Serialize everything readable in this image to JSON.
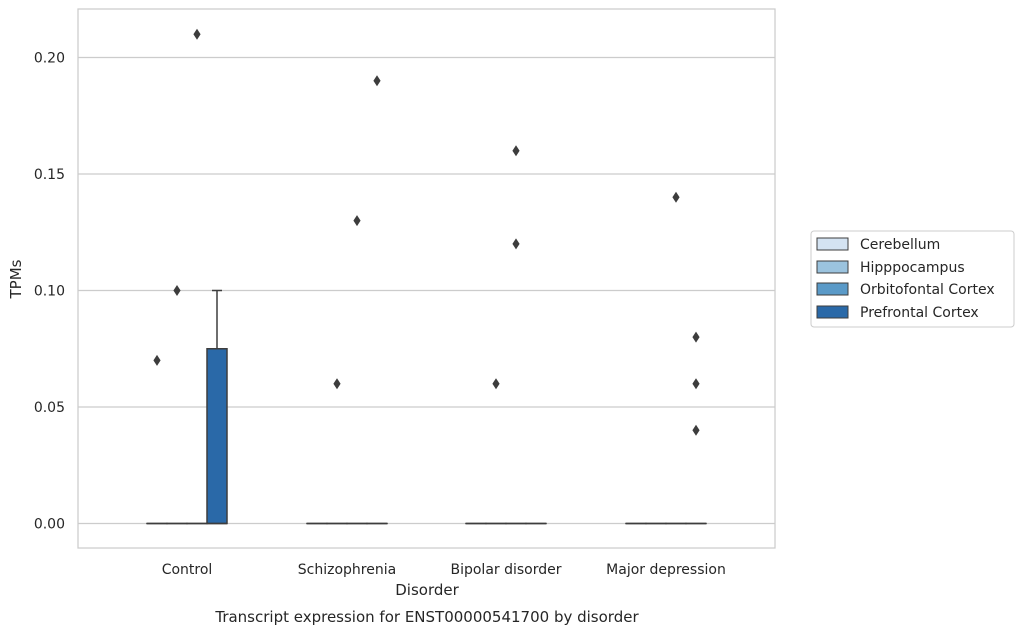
{
  "chart_data": {
    "type": "box",
    "xlabel": "Disorder",
    "ylabel": "TPMs",
    "caption": "Transcript expression for ENST00000541700 by disorder",
    "ylim": [
      -0.01,
      0.22
    ],
    "yticks": [
      "0.00",
      "0.05",
      "0.10",
      "0.15",
      "0.20"
    ],
    "categories": [
      "Control",
      "Schizophrenia",
      "Bipolar disorder",
      "Major depression"
    ],
    "grid": "horizontal",
    "legend_position": "right",
    "series": [
      {
        "name": "Cerebellum",
        "color": "#d4e3f2",
        "boxes": [
          {
            "q1": 0,
            "median": 0,
            "q3": 0,
            "whisker_low": 0,
            "whisker_high": 0
          },
          {
            "q1": 0,
            "median": 0,
            "q3": 0,
            "whisker_low": 0,
            "whisker_high": 0
          },
          {
            "q1": 0,
            "median": 0,
            "q3": 0,
            "whisker_low": 0,
            "whisker_high": 0
          },
          {
            "q1": 0,
            "median": 0,
            "q3": 0,
            "whisker_low": 0,
            "whisker_high": 0
          }
        ],
        "outliers": [
          [
            0.07
          ],
          [],
          [],
          []
        ]
      },
      {
        "name": "Hipppocampus",
        "color": "#9bc3de",
        "boxes": [
          {
            "q1": 0,
            "median": 0,
            "q3": 0,
            "whisker_low": 0,
            "whisker_high": 0
          },
          {
            "q1": 0,
            "median": 0,
            "q3": 0,
            "whisker_low": 0,
            "whisker_high": 0
          },
          {
            "q1": 0,
            "median": 0,
            "q3": 0,
            "whisker_low": 0,
            "whisker_high": 0
          },
          {
            "q1": 0,
            "median": 0,
            "q3": 0,
            "whisker_low": 0,
            "whisker_high": 0
          }
        ],
        "outliers": [
          [
            0.1
          ],
          [
            0.06
          ],
          [
            0.06
          ],
          []
        ]
      },
      {
        "name": "Orbitofontal Cortex",
        "color": "#5a9ac8",
        "boxes": [
          {
            "q1": 0,
            "median": 0,
            "q3": 0,
            "whisker_low": 0,
            "whisker_high": 0
          },
          {
            "q1": 0,
            "median": 0,
            "q3": 0,
            "whisker_low": 0,
            "whisker_high": 0
          },
          {
            "q1": 0,
            "median": 0,
            "q3": 0,
            "whisker_low": 0,
            "whisker_high": 0
          },
          {
            "q1": 0,
            "median": 0,
            "q3": 0,
            "whisker_low": 0,
            "whisker_high": 0
          }
        ],
        "outliers": [
          [
            0.21
          ],
          [
            0.13
          ],
          [
            0.16,
            0.12
          ],
          [
            0.14
          ]
        ]
      },
      {
        "name": "Prefrontal Cortex",
        "color": "#2a69a8",
        "boxes": [
          {
            "q1": 0,
            "median": 0,
            "q3": 0.075,
            "whisker_low": 0,
            "whisker_high": 0.1
          },
          {
            "q1": 0,
            "median": 0,
            "q3": 0,
            "whisker_low": 0,
            "whisker_high": 0
          },
          {
            "q1": 0,
            "median": 0,
            "q3": 0,
            "whisker_low": 0,
            "whisker_high": 0
          },
          {
            "q1": 0,
            "median": 0,
            "q3": 0,
            "whisker_low": 0,
            "whisker_high": 0
          }
        ],
        "outliers": [
          [],
          [
            0.19
          ],
          [],
          [
            0.08,
            0.06,
            0.04
          ]
        ]
      }
    ]
  }
}
